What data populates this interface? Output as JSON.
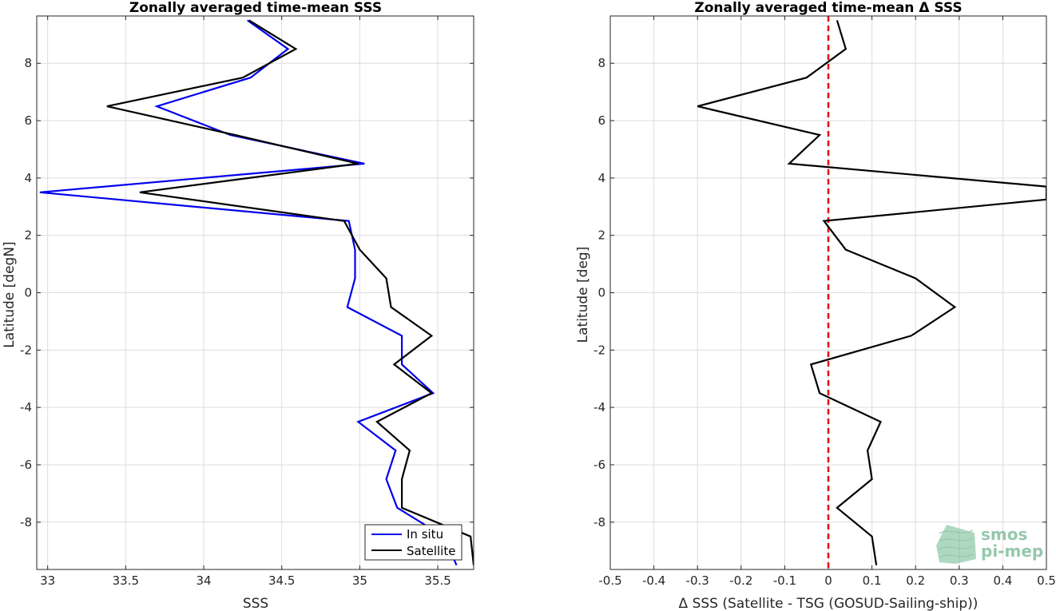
{
  "chart_data": [
    {
      "type": "line",
      "title": "Zonally averaged time-mean SSS",
      "xlabel": "SSS",
      "ylabel": "Latitude [degN]",
      "xlim": [
        32.93,
        35.73
      ],
      "ylim": [
        -9.65,
        9.65
      ],
      "xticks": [
        33,
        33.5,
        34,
        34.5,
        35,
        35.5
      ],
      "yticks": [
        -8,
        -6,
        -4,
        -2,
        0,
        2,
        4,
        6,
        8
      ],
      "grid": true,
      "legend": "bottom-right",
      "series": [
        {
          "name": "In situ",
          "color": "#0000ee",
          "x": [
            34.28,
            34.54,
            34.3,
            33.7,
            34.17,
            35.03,
            32.95,
            34.93,
            34.97,
            34.97,
            34.92,
            35.27,
            35.27,
            35.47,
            34.99,
            35.23,
            35.17,
            35.24,
            35.54,
            35.62
          ],
          "y": [
            9.5,
            8.5,
            7.5,
            6.5,
            5.5,
            4.5,
            3.5,
            2.5,
            1.5,
            0.5,
            -0.5,
            -1.5,
            -2.5,
            -3.5,
            -4.5,
            -5.5,
            -6.5,
            -7.5,
            -8.5,
            -9.5
          ]
        },
        {
          "name": "Satellite",
          "color": "#000000",
          "x": [
            34.29,
            34.59,
            34.25,
            33.38,
            34.2,
            34.99,
            33.59,
            34.9,
            35.0,
            35.17,
            35.2,
            35.46,
            35.22,
            35.46,
            35.11,
            35.32,
            35.27,
            35.27,
            35.71,
            35.73
          ],
          "y": [
            9.5,
            8.5,
            7.5,
            6.5,
            5.5,
            4.5,
            3.5,
            2.5,
            1.5,
            0.5,
            -0.5,
            -1.5,
            -2.5,
            -3.5,
            -4.5,
            -5.5,
            -6.5,
            -7.5,
            -8.5,
            -9.5
          ]
        }
      ]
    },
    {
      "type": "line",
      "title": "Zonally averaged time-mean Δ SSS",
      "xlabel": "Δ SSS (Satellite - TSG (GOSUD-Sailing-ship))",
      "ylabel": "Latitude [deg]",
      "xlim": [
        -0.5,
        0.5
      ],
      "ylim": [
        -9.65,
        9.65
      ],
      "xticks": [
        -0.5,
        -0.4,
        -0.3,
        -0.2,
        -0.1,
        0,
        0.1,
        0.2,
        0.3,
        0.4,
        0.5
      ],
      "yticks": [
        -8,
        -6,
        -4,
        -2,
        0,
        2,
        4,
        6,
        8
      ],
      "grid": true,
      "zero_line": {
        "x": 0,
        "color": "#ee0000"
      },
      "series": [
        {
          "color": "#000000",
          "x": [
            0.02,
            0.04,
            -0.05,
            -0.3,
            -0.02,
            -0.09,
            0.5,
            0.5,
            -0.01,
            0.04,
            0.2,
            0.29,
            0.19,
            -0.04,
            -0.02,
            0.12,
            0.09,
            0.1,
            0.02,
            0.1,
            0.11
          ],
          "y": [
            9.5,
            8.5,
            7.5,
            6.5,
            5.5,
            4.5,
            3.7,
            3.25,
            2.5,
            1.5,
            0.5,
            -0.5,
            -1.5,
            -2.5,
            -3.5,
            -4.5,
            -5.5,
            -6.5,
            -7.5,
            -8.5,
            -9.5
          ]
        }
      ]
    }
  ],
  "logo": {
    "line1": "smos",
    "line2": "pi-mep"
  }
}
